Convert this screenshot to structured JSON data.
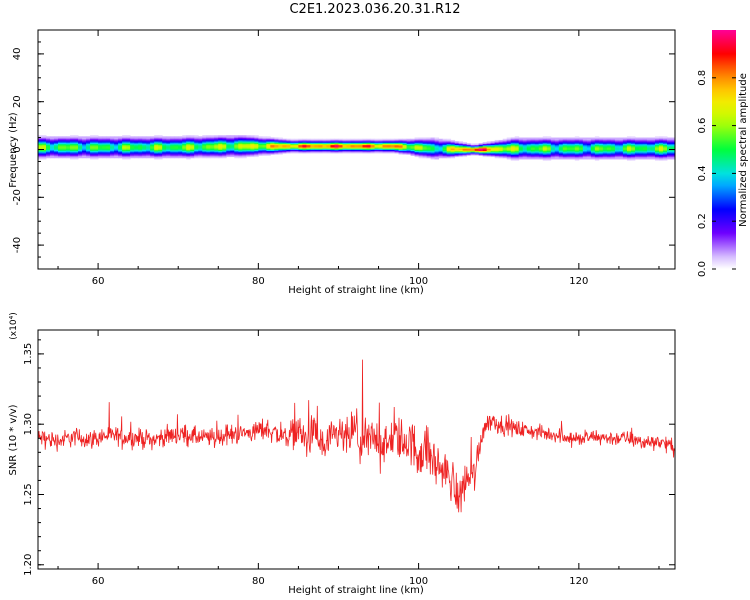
{
  "figure": {
    "title": "C2E1.2023.036.20.31.R12"
  },
  "chart_data": [
    {
      "type": "heatmap",
      "title": "C2E1.2023.036.20.31.R12",
      "xlabel": "Height of straight line (km)",
      "ylabel": "Frequency (Hz)",
      "xlim": [
        52.5,
        132
      ],
      "ylim": [
        -50,
        50
      ],
      "xticks": [
        60,
        80,
        100,
        120
      ],
      "yticks": [
        -40,
        -20,
        0,
        20,
        40
      ],
      "colorbar": {
        "label": "Normalized spectral amplitude",
        "range": [
          0,
          1
        ],
        "ticks": [
          0.0,
          0.2,
          0.4,
          0.6,
          0.8
        ],
        "colormap": "rainbow (white-violet-blue-cyan-green-yellow-orange-red-magenta)"
      },
      "band_profile": [
        {
          "x": 53,
          "center_hz": 1,
          "halfwidth_hz": 3.5,
          "peak": 0.55
        },
        {
          "x": 60,
          "center_hz": 1,
          "halfwidth_hz": 3.5,
          "peak": 0.5
        },
        {
          "x": 70,
          "center_hz": 1,
          "halfwidth_hz": 3.5,
          "peak": 0.55
        },
        {
          "x": 78,
          "center_hz": 1.5,
          "halfwidth_hz": 3.5,
          "peak": 0.6
        },
        {
          "x": 84,
          "center_hz": 1.5,
          "halfwidth_hz": 2,
          "peak": 0.8
        },
        {
          "x": 90,
          "center_hz": 1.5,
          "halfwidth_hz": 2,
          "peak": 0.85
        },
        {
          "x": 97,
          "center_hz": 1.5,
          "halfwidth_hz": 2,
          "peak": 0.8
        },
        {
          "x": 102,
          "center_hz": 0.5,
          "halfwidth_hz": 3.5,
          "peak": 0.45
        },
        {
          "x": 107,
          "center_hz": 0,
          "halfwidth_hz": 1.5,
          "peak": 0.95
        },
        {
          "x": 112,
          "center_hz": 0.5,
          "halfwidth_hz": 3.5,
          "peak": 0.55
        },
        {
          "x": 120,
          "center_hz": 0.5,
          "halfwidth_hz": 3.5,
          "peak": 0.5
        },
        {
          "x": 132,
          "center_hz": 0.5,
          "halfwidth_hz": 3.5,
          "peak": 0.55
        }
      ]
    },
    {
      "type": "line",
      "xlabel": "Height of straight line (km)",
      "ylabel": "SNR (10 * v/v)",
      "y_multiplier": "(x10⁴)",
      "xlim": [
        52.5,
        132
      ],
      "ylim": [
        1.197,
        1.367
      ],
      "xticks": [
        60,
        80,
        100,
        120
      ],
      "yticks": [
        1.2,
        1.25,
        1.3,
        1.35
      ],
      "series": [
        {
          "color": "#ee2222",
          "x": [
            53,
            55,
            57,
            59,
            61,
            63,
            65,
            67,
            69,
            71,
            73,
            75,
            77,
            79,
            81,
            83,
            84,
            85,
            86,
            87,
            88,
            89,
            90,
            91,
            92,
            93,
            94,
            95,
            96,
            97,
            98,
            99,
            100,
            101,
            102,
            103,
            104,
            105,
            106,
            107,
            108,
            109,
            110,
            112,
            114,
            116,
            118,
            120,
            122,
            124,
            126,
            128,
            130,
            132
          ],
          "y": [
            1.29,
            1.288,
            1.291,
            1.289,
            1.292,
            1.291,
            1.29,
            1.289,
            1.292,
            1.293,
            1.29,
            1.291,
            1.293,
            1.294,
            1.297,
            1.291,
            1.293,
            1.296,
            1.288,
            1.295,
            1.283,
            1.287,
            1.293,
            1.289,
            1.296,
            1.285,
            1.289,
            1.291,
            1.283,
            1.292,
            1.288,
            1.287,
            1.279,
            1.283,
            1.273,
            1.267,
            1.262,
            1.247,
            1.262,
            1.265,
            1.296,
            1.304,
            1.3,
            1.297,
            1.295,
            1.293,
            1.292,
            1.289,
            1.291,
            1.29,
            1.29,
            1.287,
            1.288,
            1.283
          ],
          "noise_amplitude": [
            0.01,
            0.01,
            0.01,
            0.01,
            0.01,
            0.01,
            0.01,
            0.01,
            0.01,
            0.01,
            0.01,
            0.01,
            0.01,
            0.01,
            0.012,
            0.012,
            0.014,
            0.018,
            0.018,
            0.02,
            0.022,
            0.02,
            0.02,
            0.02,
            0.025,
            0.028,
            0.022,
            0.022,
            0.022,
            0.022,
            0.024,
            0.024,
            0.028,
            0.024,
            0.024,
            0.022,
            0.022,
            0.024,
            0.022,
            0.02,
            0.012,
            0.01,
            0.01,
            0.009,
            0.008,
            0.008,
            0.008,
            0.008,
            0.008,
            0.008,
            0.008,
            0.008,
            0.008,
            0.008
          ]
        }
      ]
    }
  ]
}
